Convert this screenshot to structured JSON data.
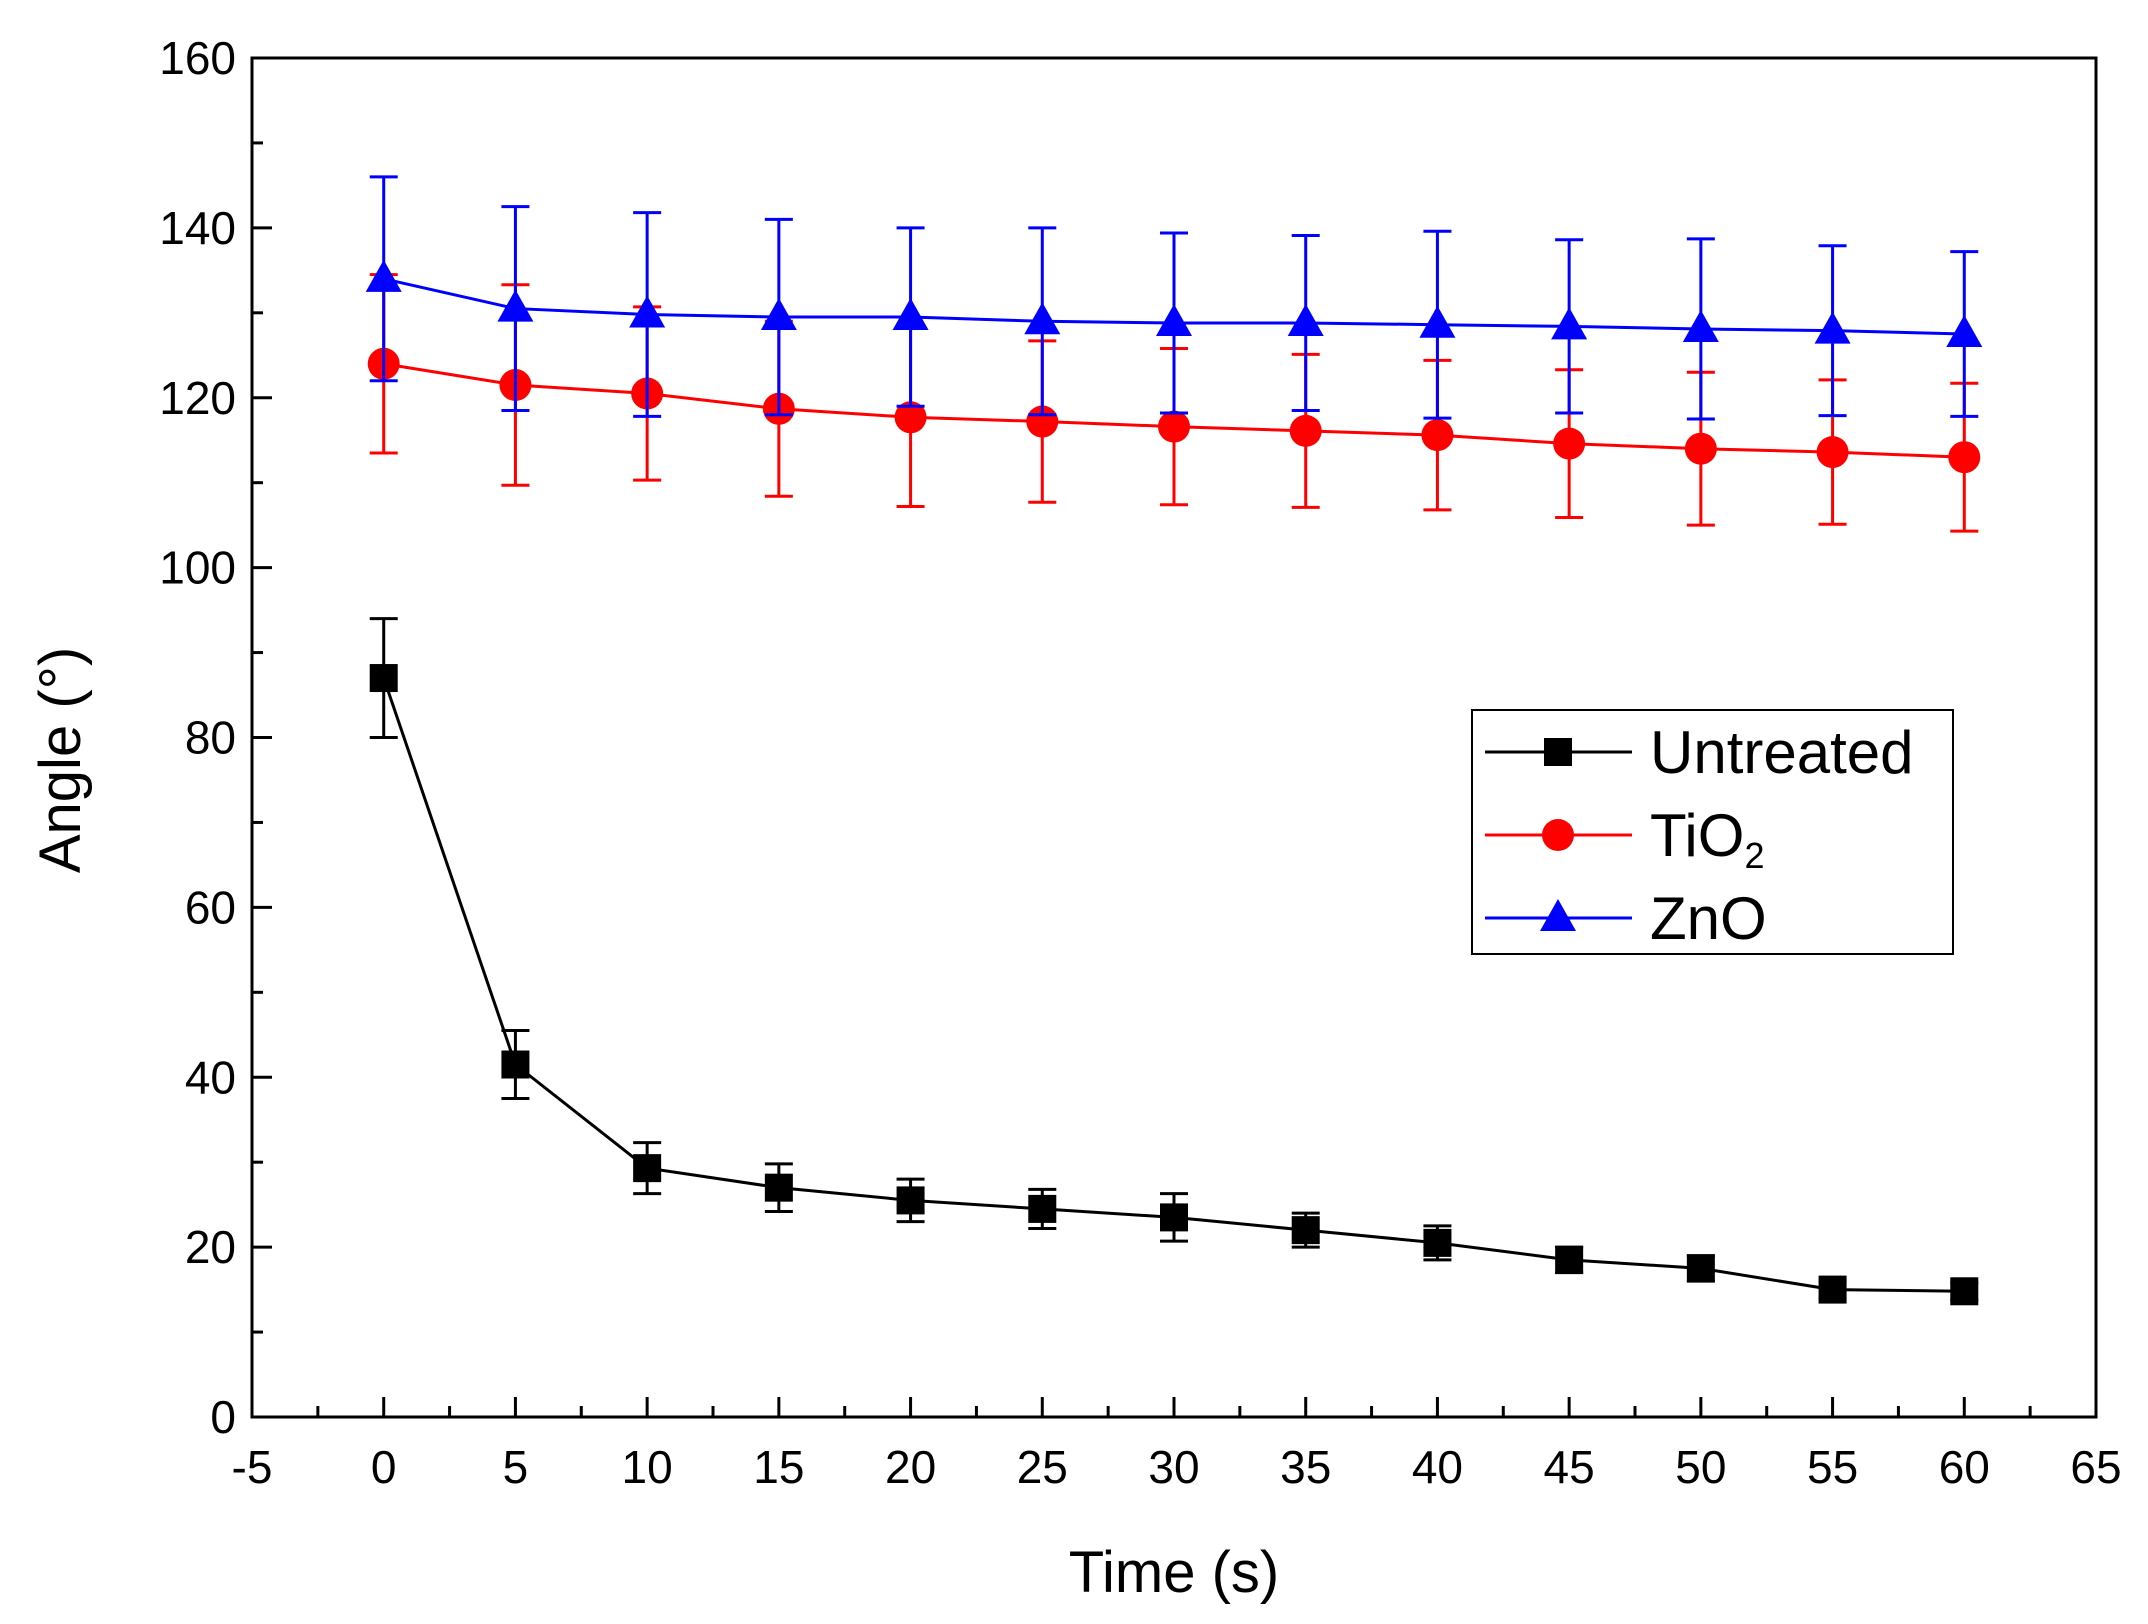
{
  "chart_data": {
    "type": "line",
    "title": "",
    "xlabel": "Time (s)",
    "ylabel": "Angle (°)",
    "ylabel_main": "Angle (",
    "ylabel_deg": "o",
    "ylabel_close": ")",
    "xlim": [
      -5,
      65
    ],
    "ylim": [
      0,
      160
    ],
    "xticks": [
      -5,
      0,
      5,
      10,
      15,
      20,
      25,
      30,
      35,
      40,
      45,
      50,
      55,
      60,
      65
    ],
    "yticks": [
      0,
      20,
      40,
      60,
      80,
      100,
      120,
      140,
      160
    ],
    "grid": false,
    "legend_placement": "center-right",
    "x": [
      0,
      5,
      10,
      15,
      20,
      25,
      30,
      35,
      40,
      45,
      50,
      55,
      60
    ],
    "series": [
      {
        "name": "Untreated",
        "color": "#000000",
        "marker": "square",
        "values": [
          87,
          41.5,
          29.3,
          27,
          25.5,
          24.5,
          23.5,
          22,
          20.5,
          18.5,
          17.5,
          15,
          14.8
        ],
        "errors": [
          7,
          4,
          3,
          2.8,
          2.5,
          2.3,
          2.8,
          2,
          2,
          1.5,
          1.5,
          1,
          1
        ]
      },
      {
        "name": "TiO2",
        "name_main": "TiO",
        "name_sub": "2",
        "color": "#ff0000",
        "marker": "circle",
        "values": [
          124,
          121.5,
          120.5,
          118.7,
          117.7,
          117.2,
          116.6,
          116.1,
          115.6,
          114.6,
          114,
          113.6,
          113
        ],
        "errors": [
          10.5,
          11.8,
          10.2,
          10.3,
          10.5,
          9.5,
          9.2,
          9,
          8.8,
          8.7,
          9,
          8.5,
          8.7
        ]
      },
      {
        "name": "ZnO",
        "color": "#0000ff",
        "marker": "triangle",
        "values": [
          134,
          130.5,
          129.8,
          129.5,
          129.5,
          129,
          128.8,
          128.8,
          128.6,
          128.4,
          128.1,
          127.9,
          127.5
        ],
        "errors": [
          12,
          12,
          12,
          11.5,
          10.5,
          11,
          10.6,
          10.3,
          11,
          10.2,
          10.6,
          10,
          9.7
        ]
      }
    ]
  }
}
